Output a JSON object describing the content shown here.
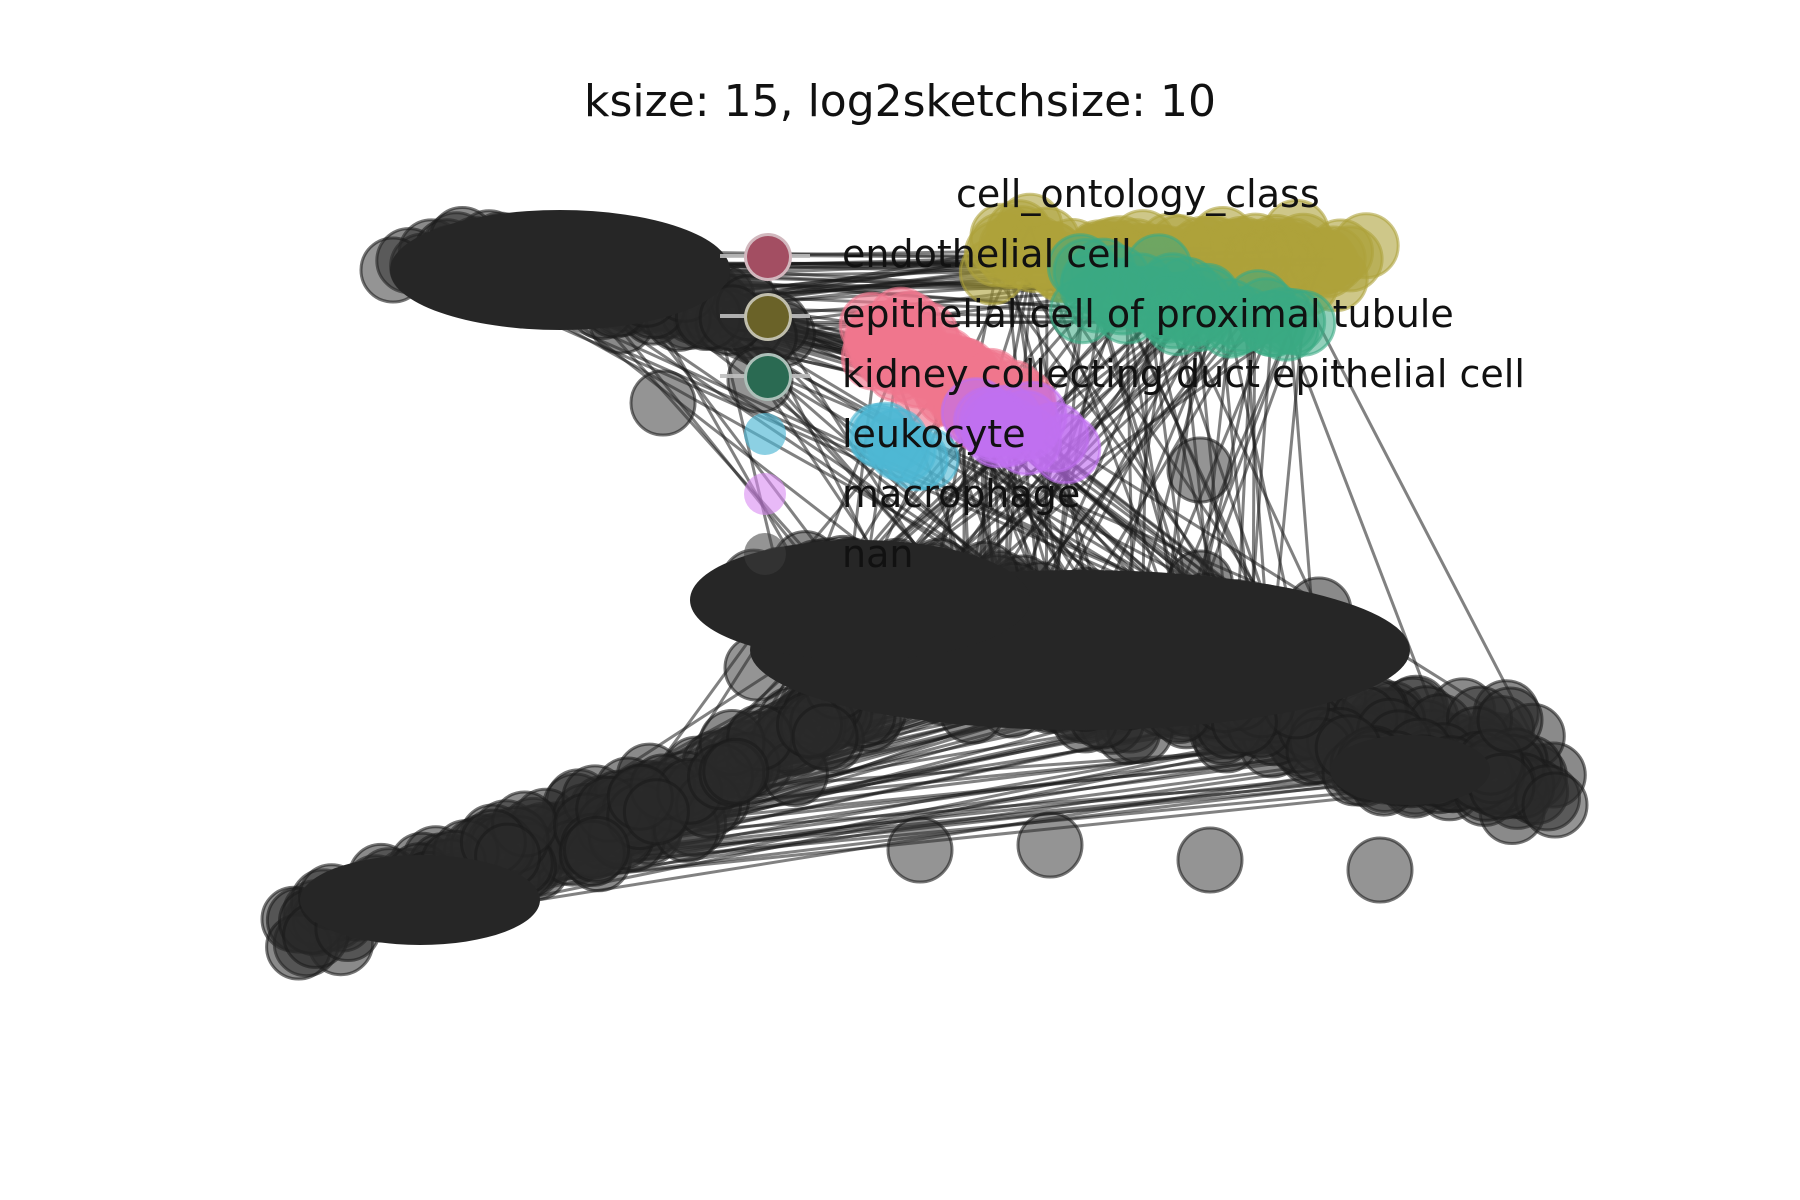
{
  "figure": {
    "title": "ksize: 15, log2sketchsize: 10"
  },
  "legend": {
    "title": "cell_ontology_class",
    "entries": [
      {
        "label": "endothelial cell",
        "color": "#f0768e",
        "has_line": true
      },
      {
        "label": "epithelial cell of proximal tubule",
        "color": "#aea13b",
        "has_line": true
      },
      {
        "label": "kidney collecting duct epithelial cell",
        "color": "#3aaa84",
        "has_line": true
      },
      {
        "label": "leukocyte",
        "color": "#4fb7d4",
        "has_line": false
      },
      {
        "label": "macrophage",
        "color": "#d88af2",
        "has_line": false
      },
      {
        "label": "nan",
        "color": "#333333",
        "has_line": false
      }
    ]
  },
  "colors": {
    "edge": "#1a1a1a",
    "nan_node": "#2a2a2a",
    "endothelial": "#f0768e",
    "epithelial_proximal": "#aea13b",
    "collecting_duct": "#3aaa84",
    "leukocyte": "#4fb7d4",
    "macrophage": "#c070f0"
  }
}
